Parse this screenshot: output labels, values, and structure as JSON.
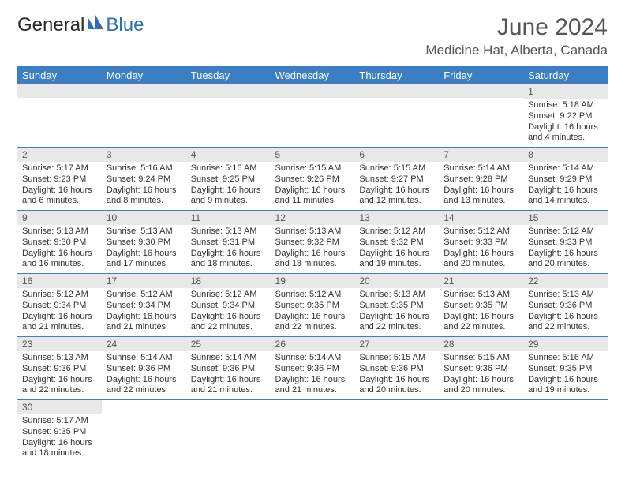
{
  "brand": {
    "text1": "General",
    "text2": "Blue"
  },
  "title": {
    "month_year": "June 2024",
    "location": "Medicine Hat, Alberta, Canada"
  },
  "colors": {
    "header_bg": "#3b7ec2",
    "header_fg": "#ffffff",
    "daynum_bg": "#e8e8e8",
    "cell_border": "#3b7ec2"
  },
  "weekdays": [
    "Sunday",
    "Monday",
    "Tuesday",
    "Wednesday",
    "Thursday",
    "Friday",
    "Saturday"
  ],
  "grid": [
    [
      null,
      null,
      null,
      null,
      null,
      null,
      {
        "n": "1",
        "sr": "Sunrise: 5:18 AM",
        "ss": "Sunset: 9:22 PM",
        "dl": "Daylight: 16 hours and 4 minutes."
      }
    ],
    [
      {
        "n": "2",
        "sr": "Sunrise: 5:17 AM",
        "ss": "Sunset: 9:23 PM",
        "dl": "Daylight: 16 hours and 6 minutes."
      },
      {
        "n": "3",
        "sr": "Sunrise: 5:16 AM",
        "ss": "Sunset: 9:24 PM",
        "dl": "Daylight: 16 hours and 8 minutes."
      },
      {
        "n": "4",
        "sr": "Sunrise: 5:16 AM",
        "ss": "Sunset: 9:25 PM",
        "dl": "Daylight: 16 hours and 9 minutes."
      },
      {
        "n": "5",
        "sr": "Sunrise: 5:15 AM",
        "ss": "Sunset: 9:26 PM",
        "dl": "Daylight: 16 hours and 11 minutes."
      },
      {
        "n": "6",
        "sr": "Sunrise: 5:15 AM",
        "ss": "Sunset: 9:27 PM",
        "dl": "Daylight: 16 hours and 12 minutes."
      },
      {
        "n": "7",
        "sr": "Sunrise: 5:14 AM",
        "ss": "Sunset: 9:28 PM",
        "dl": "Daylight: 16 hours and 13 minutes."
      },
      {
        "n": "8",
        "sr": "Sunrise: 5:14 AM",
        "ss": "Sunset: 9:29 PM",
        "dl": "Daylight: 16 hours and 14 minutes."
      }
    ],
    [
      {
        "n": "9",
        "sr": "Sunrise: 5:13 AM",
        "ss": "Sunset: 9:30 PM",
        "dl": "Daylight: 16 hours and 16 minutes."
      },
      {
        "n": "10",
        "sr": "Sunrise: 5:13 AM",
        "ss": "Sunset: 9:30 PM",
        "dl": "Daylight: 16 hours and 17 minutes."
      },
      {
        "n": "11",
        "sr": "Sunrise: 5:13 AM",
        "ss": "Sunset: 9:31 PM",
        "dl": "Daylight: 16 hours and 18 minutes."
      },
      {
        "n": "12",
        "sr": "Sunrise: 5:13 AM",
        "ss": "Sunset: 9:32 PM",
        "dl": "Daylight: 16 hours and 18 minutes."
      },
      {
        "n": "13",
        "sr": "Sunrise: 5:12 AM",
        "ss": "Sunset: 9:32 PM",
        "dl": "Daylight: 16 hours and 19 minutes."
      },
      {
        "n": "14",
        "sr": "Sunrise: 5:12 AM",
        "ss": "Sunset: 9:33 PM",
        "dl": "Daylight: 16 hours and 20 minutes."
      },
      {
        "n": "15",
        "sr": "Sunrise: 5:12 AM",
        "ss": "Sunset: 9:33 PM",
        "dl": "Daylight: 16 hours and 20 minutes."
      }
    ],
    [
      {
        "n": "16",
        "sr": "Sunrise: 5:12 AM",
        "ss": "Sunset: 9:34 PM",
        "dl": "Daylight: 16 hours and 21 minutes."
      },
      {
        "n": "17",
        "sr": "Sunrise: 5:12 AM",
        "ss": "Sunset: 9:34 PM",
        "dl": "Daylight: 16 hours and 21 minutes."
      },
      {
        "n": "18",
        "sr": "Sunrise: 5:12 AM",
        "ss": "Sunset: 9:34 PM",
        "dl": "Daylight: 16 hours and 22 minutes."
      },
      {
        "n": "19",
        "sr": "Sunrise: 5:12 AM",
        "ss": "Sunset: 9:35 PM",
        "dl": "Daylight: 16 hours and 22 minutes."
      },
      {
        "n": "20",
        "sr": "Sunrise: 5:13 AM",
        "ss": "Sunset: 9:35 PM",
        "dl": "Daylight: 16 hours and 22 minutes."
      },
      {
        "n": "21",
        "sr": "Sunrise: 5:13 AM",
        "ss": "Sunset: 9:35 PM",
        "dl": "Daylight: 16 hours and 22 minutes."
      },
      {
        "n": "22",
        "sr": "Sunrise: 5:13 AM",
        "ss": "Sunset: 9:36 PM",
        "dl": "Daylight: 16 hours and 22 minutes."
      }
    ],
    [
      {
        "n": "23",
        "sr": "Sunrise: 5:13 AM",
        "ss": "Sunset: 9:36 PM",
        "dl": "Daylight: 16 hours and 22 minutes."
      },
      {
        "n": "24",
        "sr": "Sunrise: 5:14 AM",
        "ss": "Sunset: 9:36 PM",
        "dl": "Daylight: 16 hours and 22 minutes."
      },
      {
        "n": "25",
        "sr": "Sunrise: 5:14 AM",
        "ss": "Sunset: 9:36 PM",
        "dl": "Daylight: 16 hours and 21 minutes."
      },
      {
        "n": "26",
        "sr": "Sunrise: 5:14 AM",
        "ss": "Sunset: 9:36 PM",
        "dl": "Daylight: 16 hours and 21 minutes."
      },
      {
        "n": "27",
        "sr": "Sunrise: 5:15 AM",
        "ss": "Sunset: 9:36 PM",
        "dl": "Daylight: 16 hours and 20 minutes."
      },
      {
        "n": "28",
        "sr": "Sunrise: 5:15 AM",
        "ss": "Sunset: 9:36 PM",
        "dl": "Daylight: 16 hours and 20 minutes."
      },
      {
        "n": "29",
        "sr": "Sunrise: 5:16 AM",
        "ss": "Sunset: 9:35 PM",
        "dl": "Daylight: 16 hours and 19 minutes."
      }
    ],
    [
      {
        "n": "30",
        "sr": "Sunrise: 5:17 AM",
        "ss": "Sunset: 9:35 PM",
        "dl": "Daylight: 16 hours and 18 minutes."
      },
      null,
      null,
      null,
      null,
      null,
      null
    ]
  ]
}
